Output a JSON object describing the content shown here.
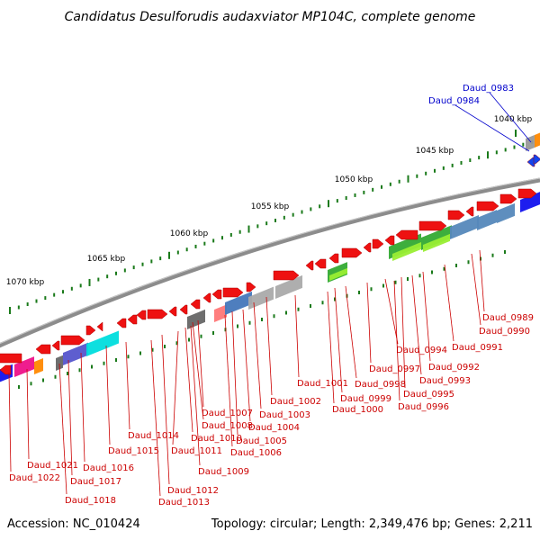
{
  "title": "Candidatus Desulforudis audaxviator MP104C, complete genome",
  "accession": "Accession: NC_010424",
  "summary": "Topology: circular; Length: 2,349,476 bp; Genes: 2,211",
  "kbp_labels": [
    "1040 kbp",
    "1045 kbp",
    "1050 kbp",
    "1055 kbp",
    "1060 kbp",
    "1065 kbp",
    "1070 kbp"
  ],
  "blue_genes": [
    "Daud_0983",
    "Daud_0984"
  ],
  "red_genes": [
    "Daud_0989",
    "Daud_0990",
    "Daud_0991",
    "Daud_0992",
    "Daud_0993",
    "Daud_0994",
    "Daud_0995",
    "Daud_0996",
    "Daud_0997",
    "Daud_0998",
    "Daud_0999",
    "Daud_1000",
    "Daud_1001",
    "Daud_1002",
    "Daud_1003",
    "Daud_1004",
    "Daud_1005",
    "Daud_1006",
    "Daud_1007",
    "Daud_1008",
    "Daud_1009",
    "Daud_1010",
    "Daud_1011",
    "Daud_1012",
    "Daud_1013",
    "Daud_1014",
    "Daud_1015",
    "Daud_1016",
    "Daud_1017",
    "Daud_1018",
    "Daud_1021",
    "Daud_1022"
  ],
  "colors": {
    "backbone": "#8c8c8c",
    "gene_arrow": "#ee1111",
    "label_red": "#cc0000",
    "label_blue": "#0000cc",
    "tick": "#1a7a1a",
    "cog_category_colors": [
      "#ee1111",
      "#999999",
      "#ff8800",
      "#1111ee",
      "#ee1188",
      "#5555cc",
      "#00dddd",
      "#666666",
      "#ff7777",
      "#4477bb",
      "#aaaaaa",
      "#33aa33",
      "#99ee33",
      "#5588bb"
    ]
  }
}
